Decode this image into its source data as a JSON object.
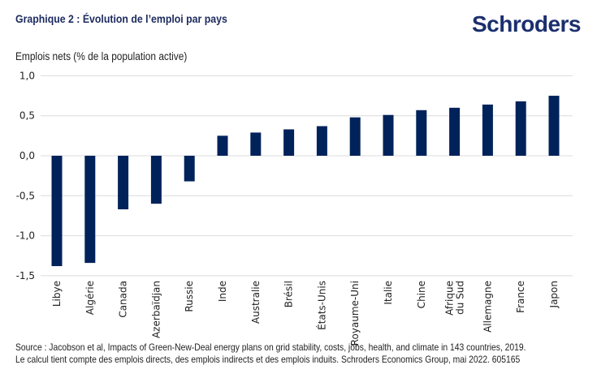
{
  "header": {
    "title": "Graphique 2 : Évolution de l’emploi par pays",
    "logo": "Schroders"
  },
  "footer": {
    "source_line1": "Source : Jacobson et al, Impacts of Green-New-Deal energy plans on grid stability, costs, jobs, health, and climate in 143 countries, 2019.",
    "source_line2": "Le calcul tient compte des emplois directs, des emplois indirects et des emplois induits. Schroders Economics Group, mai 2022. 605165"
  },
  "chart_data": {
    "type": "bar",
    "title": "Graphique 2 : Évolution de l’emploi par pays",
    "ylabel": "Emplois nets (% de la population active)",
    "xlabel": "",
    "ylim": [
      -1.5,
      1.0
    ],
    "yticks": [
      1.0,
      0.5,
      0.0,
      -0.5,
      -1.0,
      -1.5
    ],
    "ytick_labels": [
      "1,0",
      "0,5",
      "0,0",
      "-0,5",
      "-1,0",
      "-1,5"
    ],
    "grid": true,
    "bar_color": "#00225A",
    "categories": [
      "Libye",
      "Algérie",
      "Canada",
      "Azerbaïdjan",
      "Russie",
      "Inde",
      "Australie",
      "Brésil",
      "États-Unis",
      "Royaume-Uni",
      "Italie",
      "Chine",
      "Afrique du Sud",
      "Allemagne",
      "France",
      "Japon"
    ],
    "values": [
      -1.38,
      -1.34,
      -0.67,
      -0.6,
      -0.32,
      0.25,
      0.29,
      0.33,
      0.37,
      0.48,
      0.51,
      0.57,
      0.6,
      0.64,
      0.68,
      0.75
    ]
  }
}
